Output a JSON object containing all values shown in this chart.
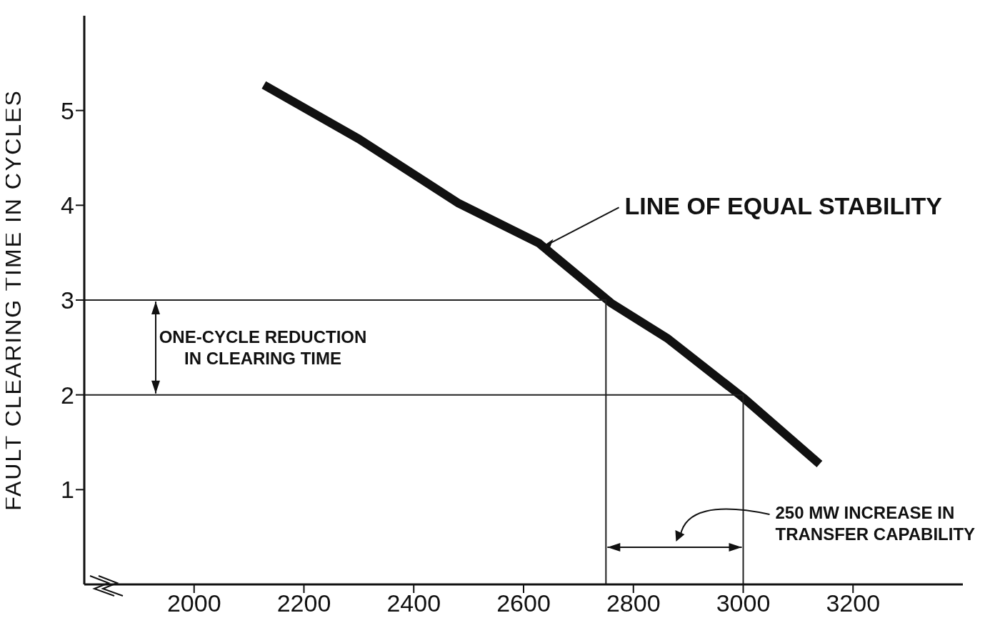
{
  "chart_data": {
    "type": "line",
    "ylabel": "FAULT CLEARING TIME IN CYCLES",
    "series": [
      {
        "color": "#111111",
        "x": [
          2127,
          2300,
          2482,
          2628,
          2759,
          2861,
          3000,
          3139
        ],
        "values": [
          5.27,
          4.7,
          4.02,
          3.6,
          2.97,
          2.6,
          1.97,
          1.27
        ]
      },
      {
        "color": "#222222",
        "x": [
          1800,
          2750,
          2750
        ],
        "values": [
          3,
          3,
          0
        ]
      },
      {
        "color": "#222222",
        "x": [
          1800,
          3000,
          3000
        ],
        "values": [
          2,
          2,
          0
        ]
      }
    ],
    "xlim": [
      1800,
      3400
    ],
    "xticks": [
      2000,
      2200,
      2400,
      2600,
      2800,
      3000,
      3200
    ],
    "ylim": [
      0,
      6
    ],
    "yticks": [
      1,
      2,
      3,
      4,
      5
    ],
    "grid": false,
    "legend": false,
    "marker": "none",
    "line_style": "solid",
    "annotations": [
      {
        "text": "LINE OF EQUAL STABILITY",
        "x": 2628,
        "y": 3.6
      },
      "ONE-CYCLE REDUCTION\nIN CLEARING TIME",
      "250 MW INCREASE IN\nTRANSFER CAPABILITY"
    ]
  }
}
